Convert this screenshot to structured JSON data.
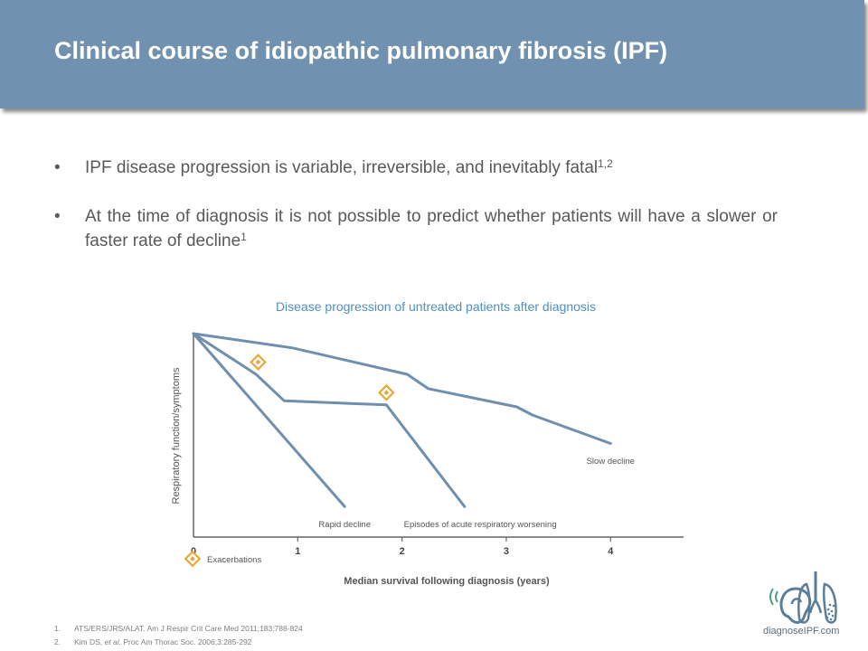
{
  "header": {
    "title": "Clinical course of idiopathic pulmonary fibrosis (IPF)"
  },
  "bullets": [
    {
      "text": "IPF disease progression is variable, irreversible, and inevitably fatal",
      "sup": "1,2"
    },
    {
      "text": "At the time of diagnosis it is not possible to predict whether patients will have a slower or faster rate of decline",
      "sup": "1"
    }
  ],
  "chart_data": {
    "type": "line",
    "title": "Disease progression of untreated patients after diagnosis",
    "xlabel": "Median survival following diagnosis (years)",
    "ylabel": "Respiratory function/symptoms",
    "xlim": [
      0,
      4.7
    ],
    "ylim": [
      0,
      100
    ],
    "x_ticks": [
      "0",
      "1",
      "2",
      "3",
      "4"
    ],
    "grid": false,
    "series": [
      {
        "name": "Slow decline",
        "points": [
          [
            0,
            100
          ],
          [
            0.95,
            93
          ],
          [
            2.05,
            80
          ],
          [
            2.25,
            73
          ],
          [
            3.1,
            64
          ],
          [
            3.25,
            60
          ],
          [
            4.0,
            46
          ]
        ]
      },
      {
        "name": "Episodes of acute respiratory worsening",
        "points": [
          [
            0,
            100
          ],
          [
            0.6,
            80
          ],
          [
            0.87,
            67
          ],
          [
            1.85,
            65
          ],
          [
            2.6,
            15
          ]
        ]
      },
      {
        "name": "Rapid decline",
        "points": [
          [
            0,
            100
          ],
          [
            1.45,
            15
          ]
        ]
      }
    ],
    "annotations": [
      {
        "label": "Rapid decline",
        "x": 1.45,
        "y": 5
      },
      {
        "label": "Episodes of acute respiratory worsening",
        "x": 2.75,
        "y": 5
      },
      {
        "label": "Slow decline",
        "x": 4.0,
        "y": 36
      }
    ],
    "exacerbations": [
      {
        "x": 0.62,
        "y": 86
      },
      {
        "x": 1.85,
        "y": 71
      }
    ],
    "legend": {
      "label": "Exacerbations",
      "position": "bottom-left"
    },
    "colors": {
      "line": "#6f8fae",
      "axis": "#666666",
      "marker": "#e8a838",
      "title": "#4f8fbd"
    }
  },
  "references": [
    {
      "num": "1.",
      "text": "ATS/ERS/JRS/ALAT. Am J Respir Crit Care Med 2011;183:788-824"
    },
    {
      "num": "2.",
      "text_before": "Kim DS, ",
      "text_italic": "et al.",
      "text_after": " Proc Am Thorac Soc. 2006;3:285-292"
    }
  ],
  "logo": {
    "text": "diagnoseIPF.com",
    "icon": "ear-lung-icon"
  }
}
